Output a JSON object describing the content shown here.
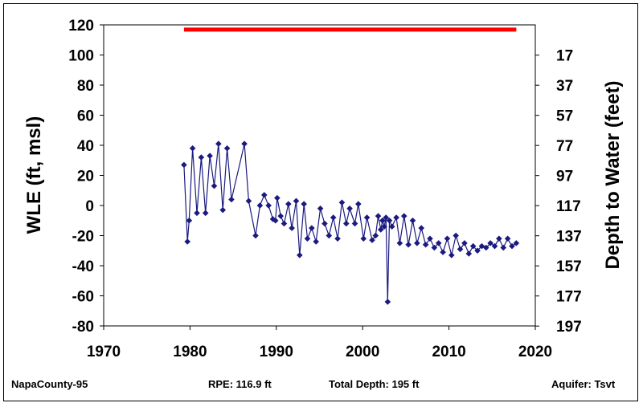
{
  "chart_data": {
    "type": "line",
    "title": "",
    "xlabel": "",
    "ylabel": "WLE (ft, msl)",
    "y2label": "Depth to Water (feet)",
    "xlim": [
      1970,
      2020
    ],
    "ylim": [
      -80,
      120
    ],
    "xticks": [
      "1970",
      "1980",
      "1990",
      "2000",
      "2010",
      "2020"
    ],
    "yticks": [
      "120",
      "100",
      "80",
      "60",
      "40",
      "20",
      "0",
      "-20",
      "-40",
      "-60",
      "-80"
    ],
    "y2ticks": [
      "17",
      "37",
      "57",
      "77",
      "97",
      "117",
      "137",
      "157",
      "177",
      "197"
    ],
    "grid": false,
    "colors": {
      "series": "#1a1a80",
      "rpe": "#ff0000"
    },
    "rpe_line": {
      "x": [
        1979.3,
        2017.8
      ],
      "y": 116.9
    },
    "series": [
      {
        "x": [
          1979.3,
          1979.7,
          1979.9,
          1980.3,
          1980.8,
          1981.3,
          1981.8,
          1982.3,
          1982.8,
          1983.3,
          1983.8,
          1984.3,
          1984.8,
          1986.3,
          1986.8,
          1987.6,
          1988.1,
          1988.6,
          1989.1,
          1989.6,
          1989.9,
          1990.1,
          1990.5,
          1990.9,
          1991.4,
          1991.8,
          1992.3,
          1992.7,
          1993.2,
          1993.6,
          1994.1,
          1994.6,
          1995.1,
          1995.6,
          1996.1,
          1996.6,
          1997.1,
          1997.6,
          1998.1,
          1998.5,
          1999.1,
          1999.5,
          2000.1,
          2000.5,
          2001.1,
          2001.5,
          2001.8,
          2002.1,
          2002.3,
          2002.5,
          2002.7,
          2002.9,
          2003.1,
          2003.4,
          2003.9,
          2004.3,
          2004.8,
          2005.3,
          2005.8,
          2006.3,
          2006.8,
          2007.3,
          2007.8,
          2008.3,
          2008.8,
          2009.3,
          2009.8,
          2010.3,
          2010.8,
          2011.3,
          2011.8,
          2012.3,
          2012.8,
          2013.3,
          2013.8,
          2014.3,
          2014.8,
          2015.3,
          2015.8,
          2016.3,
          2016.8,
          2017.3,
          2017.8
        ],
        "values": [
          27,
          -24,
          -10,
          38,
          -5,
          32,
          -5,
          33,
          13,
          41,
          -3,
          38,
          4,
          41,
          3,
          -20,
          0,
          7,
          0,
          -9,
          -10,
          5,
          -7,
          -12,
          1,
          -15,
          3,
          -33,
          1,
          -22,
          -15,
          -24,
          -2,
          -12,
          -20,
          -8,
          -22,
          2,
          -12,
          -2,
          -12,
          1,
          -22,
          -8,
          -23,
          -20,
          -7,
          -16,
          -10,
          -14,
          -8,
          -64,
          -10,
          -14,
          -8,
          -25,
          -7,
          -26,
          -10,
          -25,
          -15,
          -26,
          -22,
          -28,
          -25,
          -31,
          -22,
          -33,
          -20,
          -29,
          -25,
          -32,
          -27,
          -30,
          -27,
          -28,
          -25,
          -27,
          -22,
          -28,
          -22,
          -27,
          -25
        ]
      }
    ]
  },
  "footer": {
    "well": "NapaCounty-95",
    "rpe": "RPE: 116.9 ft",
    "depth": "Total Depth: 195 ft",
    "aquifer": "Aquifer: Tsvt"
  }
}
